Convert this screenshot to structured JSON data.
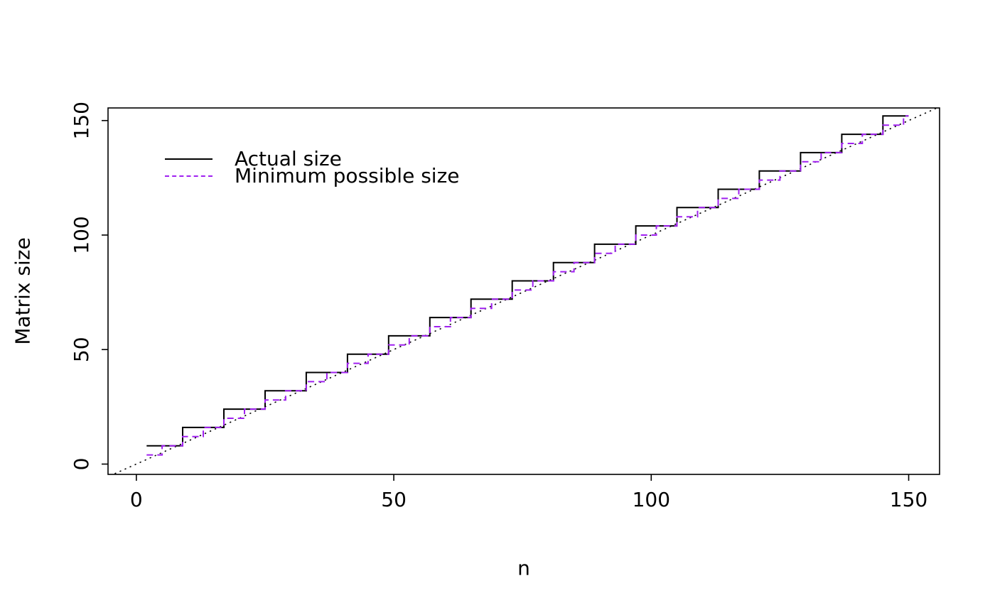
{
  "figure": {
    "background": "#ffffff"
  },
  "chart_data": {
    "type": "line",
    "title": "",
    "xlabel": "n",
    "ylabel": "Matrix size",
    "xlim": [
      -5.5,
      156
    ],
    "ylim": [
      -4.5,
      155.5
    ],
    "xticks": [
      0,
      50,
      100,
      150
    ],
    "yticks": [
      0,
      50,
      100,
      150
    ],
    "grid": false,
    "legend_position": "top-left-inside",
    "legend": [
      {
        "label": "Actual size",
        "color": "#000000",
        "line_style": "solid"
      },
      {
        "label": "Minimum possible size",
        "color": "#A020F0",
        "line_style": "dashed"
      }
    ],
    "series": [
      {
        "name": "reference-diagonal",
        "color": "#000000",
        "line_style": "dotted",
        "step": false,
        "points": [
          [
            -4.2,
            -4.2
          ],
          [
            155.8,
            155.8
          ]
        ]
      },
      {
        "name": "Actual size",
        "color": "#000000",
        "line_style": "solid",
        "step": true,
        "points": [
          [
            2,
            8
          ],
          [
            9,
            8
          ],
          [
            9,
            16
          ],
          [
            17,
            16
          ],
          [
            17,
            24
          ],
          [
            25,
            24
          ],
          [
            25,
            32
          ],
          [
            33,
            32
          ],
          [
            33,
            40
          ],
          [
            41,
            40
          ],
          [
            41,
            48
          ],
          [
            49,
            48
          ],
          [
            49,
            56
          ],
          [
            57,
            56
          ],
          [
            57,
            64
          ],
          [
            65,
            64
          ],
          [
            65,
            72
          ],
          [
            73,
            72
          ],
          [
            73,
            80
          ],
          [
            81,
            80
          ],
          [
            81,
            88
          ],
          [
            89,
            88
          ],
          [
            89,
            96
          ],
          [
            97,
            96
          ],
          [
            97,
            104
          ],
          [
            105,
            104
          ],
          [
            105,
            112
          ],
          [
            113,
            112
          ],
          [
            113,
            120
          ],
          [
            121,
            120
          ],
          [
            121,
            128
          ],
          [
            129,
            128
          ],
          [
            129,
            136
          ],
          [
            137,
            136
          ],
          [
            137,
            144
          ],
          [
            145,
            144
          ],
          [
            145,
            152
          ],
          [
            150,
            152
          ]
        ]
      },
      {
        "name": "Minimum possible size",
        "color": "#A020F0",
        "line_style": "dashed",
        "step": true,
        "points": [
          [
            2,
            4
          ],
          [
            5,
            4
          ],
          [
            5,
            8
          ],
          [
            9,
            8
          ],
          [
            9,
            12
          ],
          [
            13,
            12
          ],
          [
            13,
            16
          ],
          [
            17,
            16
          ],
          [
            17,
            20
          ],
          [
            21,
            20
          ],
          [
            21,
            24
          ],
          [
            25,
            24
          ],
          [
            25,
            28
          ],
          [
            29,
            28
          ],
          [
            29,
            32
          ],
          [
            33,
            32
          ],
          [
            33,
            36
          ],
          [
            37,
            36
          ],
          [
            37,
            40
          ],
          [
            41,
            40
          ],
          [
            41,
            44
          ],
          [
            45,
            44
          ],
          [
            45,
            48
          ],
          [
            49,
            48
          ],
          [
            49,
            52
          ],
          [
            53,
            52
          ],
          [
            53,
            56
          ],
          [
            57,
            56
          ],
          [
            57,
            60
          ],
          [
            61,
            60
          ],
          [
            61,
            64
          ],
          [
            65,
            64
          ],
          [
            65,
            68
          ],
          [
            69,
            68
          ],
          [
            69,
            72
          ],
          [
            73,
            72
          ],
          [
            73,
            76
          ],
          [
            77,
            76
          ],
          [
            77,
            80
          ],
          [
            81,
            80
          ],
          [
            81,
            84
          ],
          [
            85,
            84
          ],
          [
            85,
            88
          ],
          [
            89,
            88
          ],
          [
            89,
            92
          ],
          [
            93,
            92
          ],
          [
            93,
            96
          ],
          [
            97,
            96
          ],
          [
            97,
            100
          ],
          [
            101,
            100
          ],
          [
            101,
            104
          ],
          [
            105,
            104
          ],
          [
            105,
            108
          ],
          [
            109,
            108
          ],
          [
            109,
            112
          ],
          [
            113,
            112
          ],
          [
            113,
            116
          ],
          [
            117,
            116
          ],
          [
            117,
            120
          ],
          [
            121,
            120
          ],
          [
            121,
            124
          ],
          [
            125,
            124
          ],
          [
            125,
            128
          ],
          [
            129,
            128
          ],
          [
            129,
            132
          ],
          [
            133,
            132
          ],
          [
            133,
            136
          ],
          [
            137,
            136
          ],
          [
            137,
            140
          ],
          [
            141,
            140
          ],
          [
            141,
            144
          ],
          [
            145,
            144
          ],
          [
            145,
            148
          ],
          [
            149,
            148
          ],
          [
            149,
            152
          ],
          [
            150,
            152
          ]
        ]
      }
    ]
  }
}
